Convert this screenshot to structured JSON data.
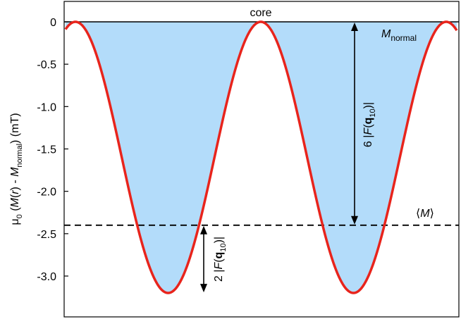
{
  "chart_data": {
    "type": "line",
    "title": "",
    "xlabel": "",
    "ylabel": {
      "prefix": "μ",
      "sub0": "0",
      "open": " (",
      "M1": "M",
      "paren_r": "(",
      "r": "r",
      "mid": ") - ",
      "M2": "M",
      "sub_normal": "normal",
      "close": ")  (mT)"
    },
    "ylim": [
      -3.4,
      0.25
    ],
    "yticks": [
      0,
      -0.5,
      -1.0,
      -1.5,
      -2.0,
      -2.5,
      -3.0
    ],
    "ytick_labels": [
      "0",
      "-0.5",
      "-1.0",
      "-1.5",
      "-2.0",
      "-2.5",
      "-3.0"
    ],
    "grid": false,
    "series": [
      {
        "color": "#e8241c",
        "fill": "#b3dcfa",
        "min_value": -3.2,
        "max_value": 0,
        "periods_shown": 2
      }
    ],
    "reference_lines": [
      {
        "value": 0,
        "style": "solid"
      },
      {
        "value": -2.4,
        "style": "dashed"
      }
    ],
    "annotations": {
      "core": "core",
      "m_normal_M": "M",
      "m_normal_sub": "normal",
      "mean_open": "⟨",
      "mean_M": "M",
      "mean_close": "⟩",
      "six_prefix": "6 |",
      "two_prefix": "2 |",
      "F": "F",
      "open_paren": "(",
      "q": "q",
      "q_sub": "10",
      "close_suffix": ")|"
    }
  }
}
